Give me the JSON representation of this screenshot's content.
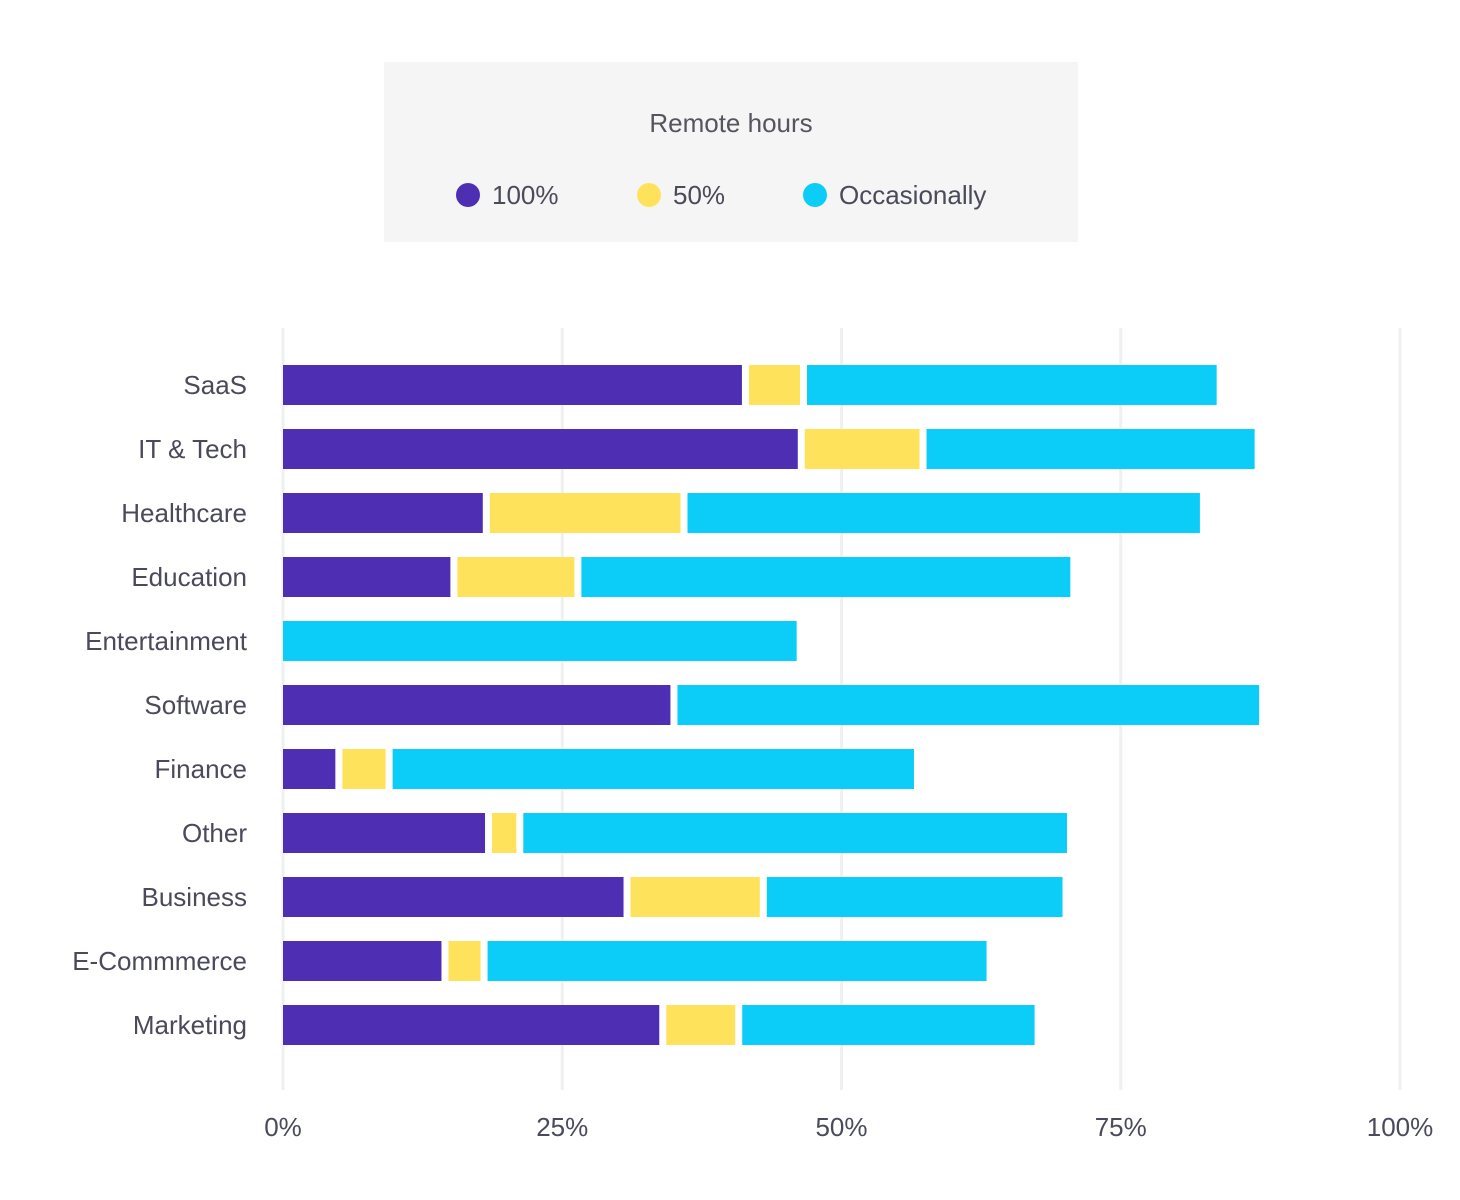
{
  "chart_data": {
    "type": "bar",
    "orientation": "horizontal",
    "stacked": true,
    "legend": {
      "title": "Remote hours",
      "placement": "top"
    },
    "categories": [
      "SaaS",
      "IT & Tech",
      "Healthcare",
      "Education",
      "Entertainment",
      "Software",
      "Finance",
      "Other",
      "Business",
      "E-Commmerce",
      "Marketing"
    ],
    "series": [
      {
        "name": "100%",
        "color": "#4e2fb4",
        "values": [
          41.4,
          46.4,
          18.2,
          15.3,
          0,
          35.0,
          5.0,
          18.4,
          30.8,
          14.5,
          34.0
        ]
      },
      {
        "name": "50%",
        "color": "#ffe25c",
        "values": [
          5.2,
          10.9,
          17.7,
          11.1,
          0,
          0,
          4.5,
          2.8,
          12.2,
          3.5,
          6.8
        ]
      },
      {
        "name": "Occasionally",
        "color": "#0bcdf7",
        "values": [
          37.3,
          30.0,
          46.5,
          44.4,
          46.3,
          52.7,
          47.3,
          49.3,
          27.1,
          45.3,
          26.8
        ]
      }
    ],
    "xlim": [
      0,
      100
    ],
    "xticks": [
      "0%",
      "25%",
      "50%",
      "75%",
      "100%"
    ],
    "grid": true
  }
}
